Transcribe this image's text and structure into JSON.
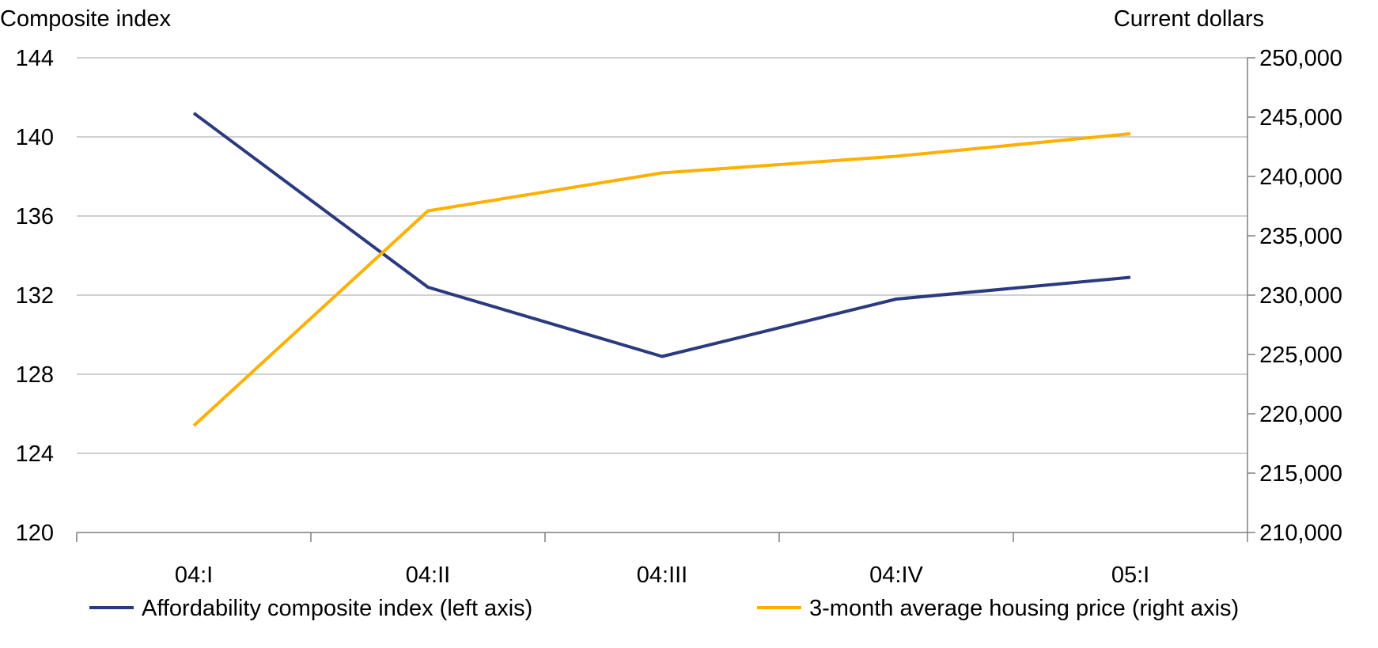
{
  "chart_data": {
    "type": "line",
    "categories": [
      "04:I",
      "04:II",
      "04:III",
      "04:IV",
      "05:I"
    ],
    "series": [
      {
        "name": "Affordability composite index (left axis)",
        "axis": "left",
        "color": "#2b3a7e",
        "values": [
          141.2,
          132.4,
          128.9,
          131.8,
          132.9
        ]
      },
      {
        "name": "3-month average housing price (right axis)",
        "axis": "right",
        "color": "#ffb000",
        "values": [
          219000,
          237100,
          240300,
          241700,
          243600
        ]
      }
    ],
    "ylabel_left": "Composite index",
    "ylabel_right": "Current dollars",
    "ylim_left": [
      120,
      144
    ],
    "ylim_right": [
      210000,
      250000
    ],
    "yticks_left": [
      "120",
      "124",
      "128",
      "132",
      "136",
      "140",
      "144"
    ],
    "yticks_right": [
      "210,000",
      "215,000",
      "220,000",
      "225,000",
      "230,000",
      "235,000",
      "240,000",
      "245,000",
      "250,000"
    ],
    "grid": true,
    "legend": "bottom"
  }
}
